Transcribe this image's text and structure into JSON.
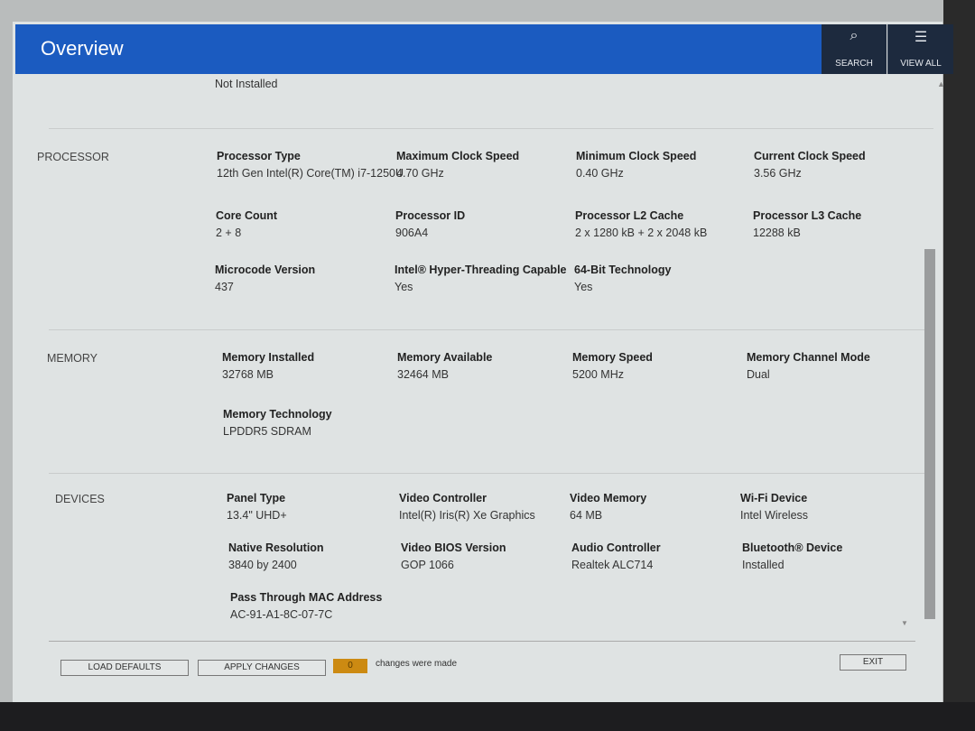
{
  "header": {
    "title": "Overview",
    "search_label": "SEARCH",
    "view_all_label": "VIEW ALL",
    "accent": "#1b5bc0"
  },
  "top_value": "Not Installed",
  "processor": {
    "section": "PROCESSOR",
    "fields": [
      {
        "label": "Processor Type",
        "value": "12th Gen Intel(R) Core(TM) i7-1250U"
      },
      {
        "label": "Maximum Clock Speed",
        "value": "4.70 GHz"
      },
      {
        "label": "Minimum Clock Speed",
        "value": "0.40 GHz"
      },
      {
        "label": "Current Clock Speed",
        "value": "3.56 GHz"
      },
      {
        "label": "Core Count",
        "value": "2 + 8"
      },
      {
        "label": "Processor ID",
        "value": "906A4"
      },
      {
        "label": "Processor L2 Cache",
        "value": "2 x 1280  kB + 2 x 2048  kB"
      },
      {
        "label": "Processor L3 Cache",
        "value": "12288 kB"
      },
      {
        "label": "Microcode Version",
        "value": "437"
      },
      {
        "label": "Intel® Hyper-Threading Capable",
        "value": "Yes"
      },
      {
        "label": "64-Bit Technology",
        "value": "Yes"
      }
    ]
  },
  "memory": {
    "section": "MEMORY",
    "fields": [
      {
        "label": "Memory Installed",
        "value": "32768 MB"
      },
      {
        "label": "Memory Available",
        "value": "32464 MB"
      },
      {
        "label": "Memory Speed",
        "value": "5200 MHz"
      },
      {
        "label": "Memory Channel Mode",
        "value": "Dual"
      },
      {
        "label": "Memory Technology",
        "value": "LPDDR5 SDRAM"
      }
    ]
  },
  "devices": {
    "section": "DEVICES",
    "fields": [
      {
        "label": "Panel Type",
        "value": "13.4\" UHD+"
      },
      {
        "label": "Video Controller",
        "value": "Intel(R) Iris(R) Xe Graphics"
      },
      {
        "label": "Video Memory",
        "value": "64 MB"
      },
      {
        "label": "Wi-Fi Device",
        "value": "Intel Wireless"
      },
      {
        "label": "Native Resolution",
        "value": "3840 by 2400"
      },
      {
        "label": "Video BIOS Version",
        "value": "GOP 1066"
      },
      {
        "label": "Audio Controller",
        "value": "Realtek ALC714"
      },
      {
        "label": "Bluetooth® Device",
        "value": "Installed"
      },
      {
        "label": "Pass Through MAC Address",
        "value": "AC-91-A1-8C-07-7C"
      }
    ]
  },
  "footer": {
    "load_defaults": "LOAD DEFAULTS",
    "apply_changes": "APPLY CHANGES",
    "changes_count": "0",
    "changes_text": "changes were made",
    "exit": "EXIT",
    "badge_color": "#cc8a12"
  }
}
